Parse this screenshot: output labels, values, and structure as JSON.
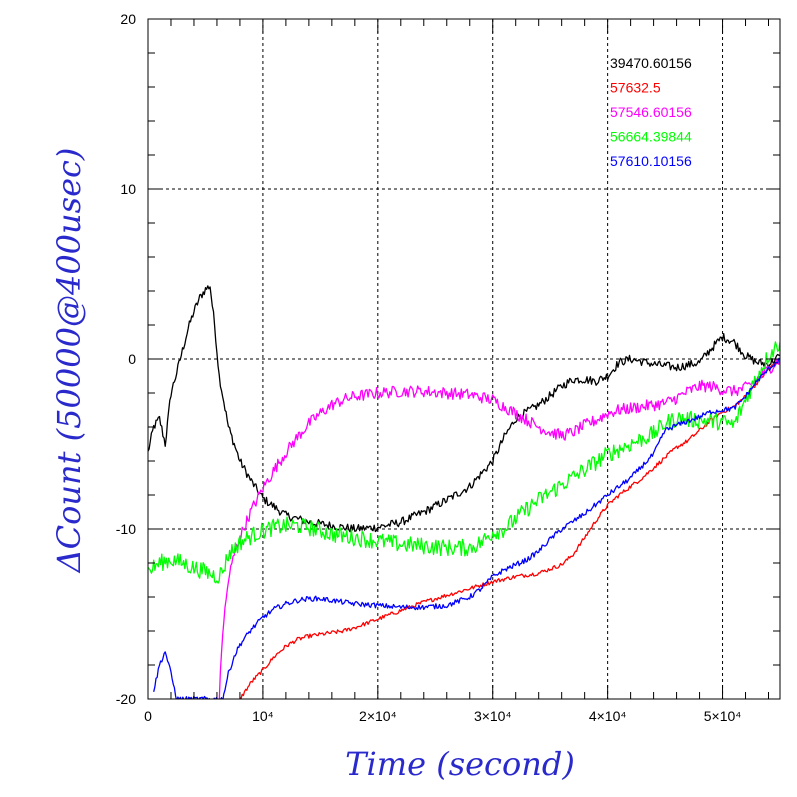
{
  "chart_data": {
    "type": "line",
    "xlabel": "Time (second)",
    "ylabel": "ΔCount (50000@400usec)",
    "xlim": [
      0,
      55000
    ],
    "ylim": [
      -20,
      20
    ],
    "x_ticks": [
      {
        "value": 0,
        "label": "0"
      },
      {
        "value": 10000,
        "label": "10⁴"
      },
      {
        "value": 20000,
        "label": "2×10⁴"
      },
      {
        "value": 30000,
        "label": "3×10⁴"
      },
      {
        "value": 40000,
        "label": "4×10⁴"
      },
      {
        "value": 50000,
        "label": "5×10⁴"
      }
    ],
    "y_ticks": [
      {
        "value": -20,
        "label": "-20"
      },
      {
        "value": -10,
        "label": "-10"
      },
      {
        "value": 0,
        "label": "0"
      },
      {
        "value": 10,
        "label": "10"
      },
      {
        "value": 20,
        "label": "20"
      }
    ],
    "grid": true,
    "legend_position": "top-right",
    "series": [
      {
        "name": "39470.60156",
        "color": "#000000",
        "noise": 0.25,
        "x": [
          0,
          500,
          1000,
          1500,
          2000,
          2500,
          3000,
          3500,
          4000,
          4500,
          5000,
          5400,
          5800,
          6200,
          7000,
          8000,
          9000,
          10000,
          12000,
          14000,
          16000,
          18000,
          20000,
          22000,
          24000,
          26000,
          28000,
          30000,
          31000,
          32000,
          34000,
          36000,
          37000,
          38000,
          39000,
          40000,
          41000,
          42000,
          44000,
          46000,
          48000,
          49000,
          50000,
          51000,
          52000,
          53000,
          54000,
          55000
        ],
        "y": [
          -5.5,
          -4.0,
          -3.5,
          -5.0,
          -2.0,
          -0.8,
          0.5,
          1.8,
          2.8,
          3.6,
          4.1,
          4.3,
          2.0,
          -1.0,
          -4.0,
          -6.0,
          -7.2,
          -8.2,
          -9.2,
          -9.6,
          -9.8,
          -10.0,
          -9.9,
          -9.6,
          -9.0,
          -8.3,
          -7.5,
          -6.0,
          -4.6,
          -3.5,
          -2.7,
          -1.6,
          -1.2,
          -1.2,
          -1.3,
          -1.0,
          -0.2,
          0.0,
          -0.3,
          -0.5,
          -0.2,
          0.6,
          1.3,
          1.0,
          0.2,
          -0.2,
          -0.3,
          0.2
        ]
      },
      {
        "name": "57632.5",
        "color": "#ff0000",
        "noise": 0.12,
        "x": [
          8000,
          9000,
          10000,
          11000,
          12000,
          13000,
          14000,
          15000,
          16000,
          17000,
          18000,
          20000,
          22000,
          24000,
          26000,
          28000,
          30000,
          32000,
          34000,
          36000,
          37000,
          38000,
          39000,
          40000,
          41000,
          42000,
          43000,
          44000,
          45000,
          46000,
          47000,
          48000,
          49000,
          50000,
          51000,
          52000,
          53000,
          54000,
          55000
        ],
        "y": [
          -20.0,
          -19.0,
          -18.3,
          -17.5,
          -16.9,
          -16.5,
          -16.3,
          -16.2,
          -16.1,
          -16.0,
          -15.8,
          -15.3,
          -14.8,
          -14.3,
          -13.9,
          -13.5,
          -13.1,
          -12.8,
          -12.6,
          -12.1,
          -11.5,
          -10.5,
          -9.5,
          -8.6,
          -8.0,
          -7.5,
          -7.0,
          -6.4,
          -5.8,
          -5.2,
          -4.8,
          -4.2,
          -3.6,
          -3.1,
          -2.8,
          -2.2,
          -1.4,
          -0.6,
          0.0
        ]
      },
      {
        "name": "57546.60156",
        "color": "#ff00ff",
        "noise": 0.35,
        "x": [
          6200,
          6500,
          7000,
          7500,
          8000,
          9000,
          10000,
          11000,
          12000,
          13000,
          14000,
          15000,
          16000,
          17000,
          18000,
          20000,
          22000,
          24000,
          26000,
          28000,
          30000,
          31000,
          32000,
          33000,
          34000,
          35000,
          36000,
          37000,
          38000,
          39000,
          40000,
          41000,
          42000,
          43000,
          44000,
          45000,
          46000,
          47000,
          48000,
          49000,
          50000,
          51000,
          52000,
          53000,
          54000,
          55000
        ],
        "y": [
          -20.0,
          -16.0,
          -13.0,
          -11.5,
          -10.5,
          -8.9,
          -7.6,
          -6.5,
          -5.5,
          -4.6,
          -3.8,
          -3.2,
          -2.7,
          -2.4,
          -2.2,
          -2.0,
          -1.9,
          -1.9,
          -2.0,
          -2.1,
          -2.4,
          -2.8,
          -3.2,
          -3.6,
          -4.0,
          -4.3,
          -4.5,
          -4.3,
          -3.9,
          -3.6,
          -3.2,
          -3.0,
          -2.9,
          -2.8,
          -2.7,
          -2.6,
          -2.3,
          -1.9,
          -1.6,
          -1.6,
          -1.8,
          -1.9,
          -1.7,
          -1.2,
          -0.6,
          0.0
        ]
      },
      {
        "name": "56664.39844",
        "color": "#00ff00",
        "noise": 0.5,
        "x": [
          0,
          1000,
          2000,
          3000,
          4000,
          5000,
          6000,
          6500,
          7000,
          8000,
          9000,
          10000,
          11000,
          12000,
          13000,
          14000,
          15000,
          16000,
          17000,
          18000,
          20000,
          22000,
          24000,
          26000,
          28000,
          29000,
          30000,
          31000,
          32000,
          33000,
          34000,
          36000,
          38000,
          40000,
          42000,
          44000,
          45000,
          46000,
          48000,
          50000,
          51000,
          52000,
          53000,
          54000,
          55000
        ],
        "y": [
          -12.5,
          -12.0,
          -11.8,
          -12.0,
          -12.3,
          -12.5,
          -12.8,
          -12.5,
          -11.5,
          -10.8,
          -10.4,
          -10.1,
          -9.9,
          -9.8,
          -9.8,
          -9.9,
          -10.1,
          -10.3,
          -10.4,
          -10.5,
          -10.7,
          -10.9,
          -11.0,
          -11.1,
          -11.1,
          -10.8,
          -10.2,
          -10.0,
          -9.4,
          -8.8,
          -8.3,
          -7.4,
          -6.5,
          -5.6,
          -5.0,
          -4.4,
          -3.8,
          -3.5,
          -3.6,
          -3.7,
          -3.9,
          -2.4,
          -1.0,
          0.2,
          1.0
        ]
      },
      {
        "name": "57610.10156",
        "color": "#0000ff",
        "noise": 0.15,
        "x": [
          500,
          1000,
          1500,
          2000,
          2500,
          6500,
          7000,
          7500,
          8000,
          9000,
          10000,
          11000,
          12000,
          13000,
          14000,
          15000,
          16000,
          17000,
          18000,
          20000,
          22000,
          24000,
          26000,
          28000,
          29000,
          30000,
          31000,
          32000,
          33000,
          34000,
          35000,
          36000,
          38000,
          40000,
          42000,
          44000,
          45000,
          46000,
          48000,
          49000,
          50000,
          51000,
          52000,
          53000,
          54000,
          55000
        ],
        "y": [
          -19.5,
          -18.0,
          -17.2,
          -18.5,
          -20.0,
          -20.0,
          -18.5,
          -17.5,
          -16.8,
          -15.9,
          -15.2,
          -14.7,
          -14.4,
          -14.2,
          -14.1,
          -14.1,
          -14.2,
          -14.3,
          -14.4,
          -14.5,
          -14.6,
          -14.6,
          -14.5,
          -14.0,
          -13.5,
          -12.8,
          -12.4,
          -12.1,
          -11.8,
          -11.3,
          -10.6,
          -10.0,
          -9.1,
          -8.0,
          -7.0,
          -5.6,
          -4.2,
          -3.9,
          -3.4,
          -3.1,
          -3.0,
          -2.9,
          -2.2,
          -1.3,
          -0.6,
          0.0
        ]
      }
    ]
  }
}
